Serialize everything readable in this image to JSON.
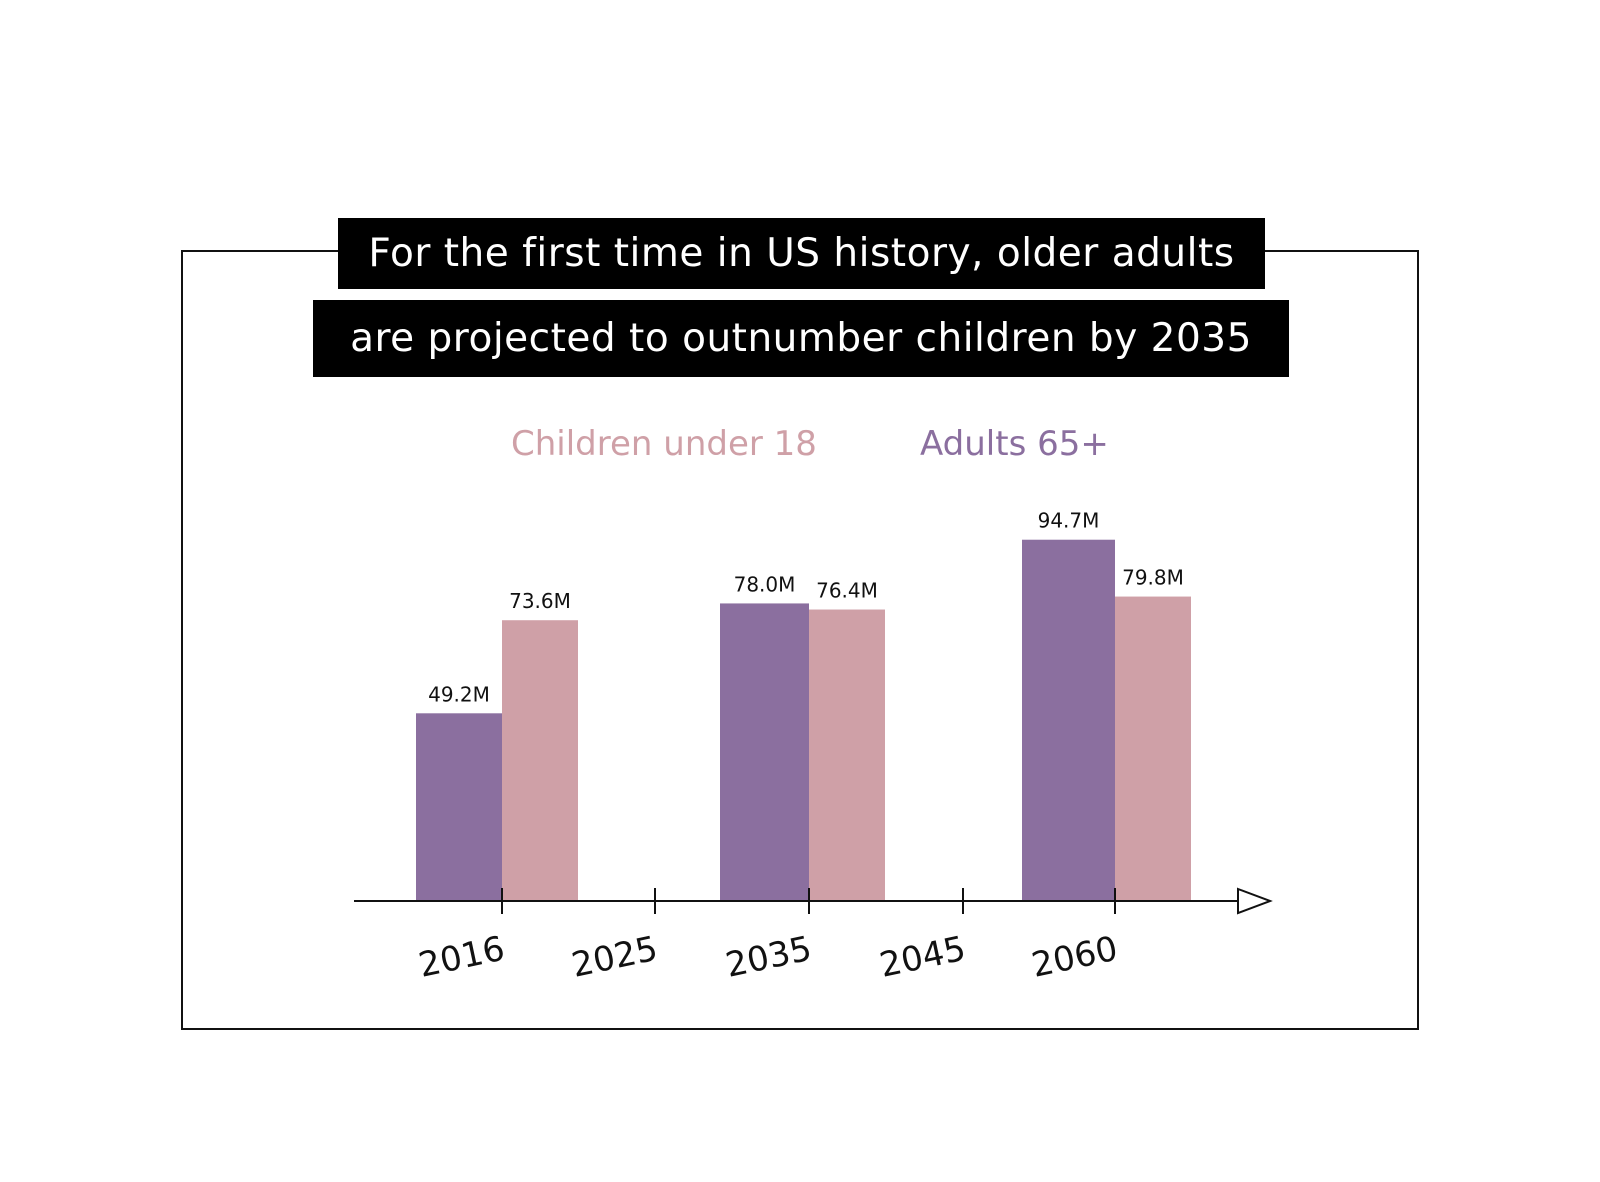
{
  "title": {
    "line1": "For the first time in US history, older adults",
    "line2": "are projected to outnumber children by 2035"
  },
  "colors": {
    "children": "#cfa0a7",
    "adults": "#8b6f9f",
    "background": "#ffffff",
    "title_bg": "#000000",
    "title_text": "#ffffff",
    "axis": "#111111"
  },
  "chart_data": {
    "type": "bar",
    "title": "For the first time in US history, older adults are projected to outnumber children by 2035",
    "xlabel": "",
    "ylabel": "",
    "x_ticks": [
      "2016",
      "2025",
      "2035",
      "2045",
      "2060"
    ],
    "categories": [
      "2016",
      "2035",
      "2060"
    ],
    "series": [
      {
        "name": "Adults 65+",
        "color": "#8b6f9f",
        "values": [
          49.2,
          78.0,
          94.7
        ],
        "labels": [
          "49.2M",
          "78.0M",
          "94.7M"
        ]
      },
      {
        "name": "Children under 18",
        "color": "#cfa0a7",
        "values": [
          73.6,
          76.4,
          79.8
        ],
        "labels": [
          "73.6M",
          "76.4M",
          "79.8M"
        ]
      }
    ],
    "legend": {
      "placement": "top-center",
      "order": [
        "Children under 18",
        "Adults 65+"
      ]
    },
    "units": "millions",
    "ylim": [
      0,
      100
    ],
    "grid": false
  }
}
